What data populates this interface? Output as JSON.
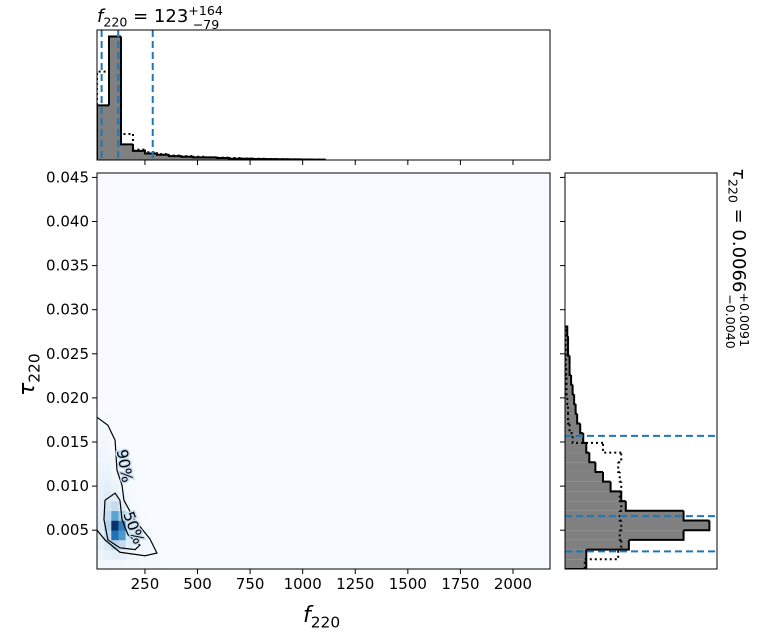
{
  "chart_data": [
    {
      "type": "histogram",
      "orientation": "vertical",
      "title": {
        "symbol": "f",
        "subscript": "220",
        "value": " = 123",
        "upper": "+164",
        "lower": "−79"
      },
      "bins": [
        22,
        79,
        136,
        193,
        250,
        307,
        364,
        421,
        478,
        535,
        592,
        649,
        706,
        763,
        820,
        877,
        934,
        991,
        1048,
        1105
      ],
      "series": [
        {
          "color": "#808080",
          "edgecolor": "#000000",
          "values": [
            0.42,
            0.95,
            0.12,
            0.07,
            0.05,
            0.04,
            0.03,
            0.025,
            0.02,
            0.02,
            0.015,
            0.01,
            0.01,
            0.008,
            0.007,
            0.006,
            0.005,
            0.004,
            0.003
          ]
        },
        {
          "color": "#000000",
          "linestyle": "dotted",
          "values": [
            0.68,
            0.95,
            0.2,
            0.08,
            0.06,
            0.045,
            0.035,
            0.03,
            0.025,
            0.02,
            0.018,
            0.015,
            0.012,
            0.01,
            0.008,
            0.006,
            0.005,
            0.004,
            0.003
          ]
        }
      ],
      "xlim": [
        22,
        2176
      ],
      "xticks": [
        250,
        500,
        750,
        1000,
        1250,
        1500,
        1750,
        2000
      ],
      "ylim": [
        0,
        1
      ],
      "quantiles": [
        44,
        123,
        287
      ],
      "quantile_color": "#1f77b4"
    },
    {
      "type": "heatmap",
      "xlabel": {
        "symbol": "f",
        "subscript": "220"
      },
      "ylabel": {
        "symbol": "τ",
        "subscript": "220"
      },
      "xlim": [
        22,
        2176
      ],
      "ylim": [
        0.0006,
        0.0455
      ],
      "xticks": [
        250,
        500,
        750,
        1000,
        1250,
        1500,
        1750,
        2000
      ],
      "yticks": [
        0.005,
        {
          "value": 0.01,
          "label": "0.010"
        },
        0.015,
        {
          "value": 0.02,
          "label": "0.020"
        },
        0.025,
        {
          "value": 0.03,
          "label": "0.030"
        },
        0.035,
        {
          "value": 0.04,
          "label": "0.040"
        },
        0.045
      ],
      "colors": [
        "#f7fbff",
        "#deebf7",
        "#c6dbef",
        "#9ecae1",
        "#6baed6",
        "#4292c6",
        "#2171b5",
        "#08519c",
        "#08306b"
      ],
      "x_edges": [
        22,
        56,
        90,
        124,
        158,
        192,
        226,
        260,
        294,
        328,
        362
      ],
      "y_edges": [
        0.0006,
        0.0017,
        0.0028,
        0.0039,
        0.005,
        0.0061,
        0.0072,
        0.0083,
        0.0094,
        0.0105,
        0.0116,
        0.0127,
        0.0138,
        0.0149,
        0.016,
        0.0171,
        0.0182
      ],
      "z": [
        [
          0.02,
          0.03,
          0.03,
          0.03,
          0.02,
          0.02,
          0.01,
          0.01,
          0.005,
          0.003
        ],
        [
          0.05,
          0.08,
          0.1,
          0.1,
          0.06,
          0.04,
          0.03,
          0.02,
          0.01,
          0.005
        ],
        [
          0.08,
          0.15,
          0.3,
          0.25,
          0.1,
          0.06,
          0.03,
          0.02,
          0.01,
          0.005
        ],
        [
          0.1,
          0.25,
          0.75,
          0.6,
          0.15,
          0.06,
          0.02,
          0.01,
          0.005,
          0
        ],
        [
          0.12,
          0.3,
          1.0,
          0.7,
          0.15,
          0.04,
          0.01,
          0.005,
          0,
          0
        ],
        [
          0.1,
          0.25,
          0.55,
          0.35,
          0.08,
          0.02,
          0.005,
          0,
          0,
          0
        ],
        [
          0.1,
          0.18,
          0.25,
          0.12,
          0.04,
          0.01,
          0,
          0,
          0,
          0
        ],
        [
          0.08,
          0.12,
          0.12,
          0.05,
          0.02,
          0.005,
          0,
          0,
          0,
          0
        ],
        [
          0.07,
          0.09,
          0.06,
          0.03,
          0.01,
          0,
          0,
          0,
          0,
          0
        ],
        [
          0.06,
          0.07,
          0.04,
          0.02,
          0.005,
          0,
          0,
          0,
          0,
          0
        ],
        [
          0.05,
          0.05,
          0.03,
          0.01,
          0,
          0,
          0,
          0,
          0,
          0
        ],
        [
          0.04,
          0.04,
          0.02,
          0.005,
          0,
          0,
          0,
          0,
          0,
          0
        ],
        [
          0.03,
          0.03,
          0.01,
          0,
          0,
          0,
          0,
          0,
          0,
          0
        ],
        [
          0.03,
          0.02,
          0.005,
          0,
          0,
          0,
          0,
          0,
          0,
          0
        ],
        [
          0.02,
          0.01,
          0,
          0,
          0,
          0,
          0,
          0,
          0,
          0
        ],
        [
          0.01,
          0.005,
          0,
          0,
          0,
          0,
          0,
          0,
          0,
          0
        ]
      ],
      "contours": [
        {
          "label": "90%",
          "color": "#000000",
          "x": [
            22,
            74,
            108,
            117,
            141,
            150,
            200,
            274,
            307,
            250,
            131,
            60,
            22
          ],
          "y": [
            0.0178,
            0.0169,
            0.0152,
            0.0118,
            0.0101,
            0.0084,
            0.0062,
            0.004,
            0.0024,
            0.0021,
            0.0025,
            0.0039,
            0.005
          ]
        },
        {
          "label": "50%",
          "color": "#000000",
          "x": [
            60,
            108,
            131,
            141,
            169,
            226,
            203,
            131,
            74,
            55,
            60
          ],
          "y": [
            0.0084,
            0.0092,
            0.0084,
            0.0062,
            0.0045,
            0.0033,
            0.0028,
            0.003,
            0.0039,
            0.0062,
            0.0084
          ]
        }
      ]
    },
    {
      "type": "histogram",
      "orientation": "horizontal",
      "title": {
        "symbol": "τ",
        "subscript": "220",
        "value": " = 0.0066",
        "upper": "+0.0091",
        "lower": "−0.0040"
      },
      "bins": [
        0.0006,
        0.0017,
        0.0028,
        0.0039,
        0.005,
        0.0061,
        0.0072,
        0.0083,
        0.0094,
        0.0105,
        0.0116,
        0.0127,
        0.0138,
        0.0149,
        0.016,
        0.0171,
        0.0182,
        0.0193,
        0.0204,
        0.0215,
        0.0226,
        0.0237,
        0.0248,
        0.0259,
        0.027,
        0.0281
      ],
      "series": [
        {
          "color": "#808080",
          "edgecolor": "#000000",
          "values": [
            0.14,
            0.14,
            0.42,
            0.78,
            0.95,
            0.78,
            0.4,
            0.37,
            0.3,
            0.25,
            0.2,
            0.16,
            0.14,
            0.12,
            0.1,
            0.08,
            0.07,
            0.06,
            0.05,
            0.04,
            0.03,
            0.03,
            0.02,
            0.02,
            0.015
          ]
        },
        {
          "color": "#000000",
          "linestyle": "dotted",
          "values": [
            0.13,
            0.35,
            0.37,
            0.36,
            0.37,
            0.36,
            0.37,
            0.36,
            0.37,
            0.36,
            0.35,
            0.37,
            0.25,
            0.05,
            0.03,
            0.02,
            0.02,
            0.015,
            0.01,
            0.01,
            0.008,
            0.006,
            0.005,
            0.004,
            0.003
          ]
        }
      ],
      "ylim": [
        0.0006,
        0.0455
      ],
      "yticks": [
        0.005,
        0.01,
        0.015,
        0.02,
        0.025,
        0.03,
        0.035,
        0.04,
        0.045
      ],
      "xlim": [
        0,
        1
      ],
      "quantiles": [
        0.0026,
        0.0066,
        0.0157
      ],
      "quantile_color": "#1f77b4"
    }
  ]
}
